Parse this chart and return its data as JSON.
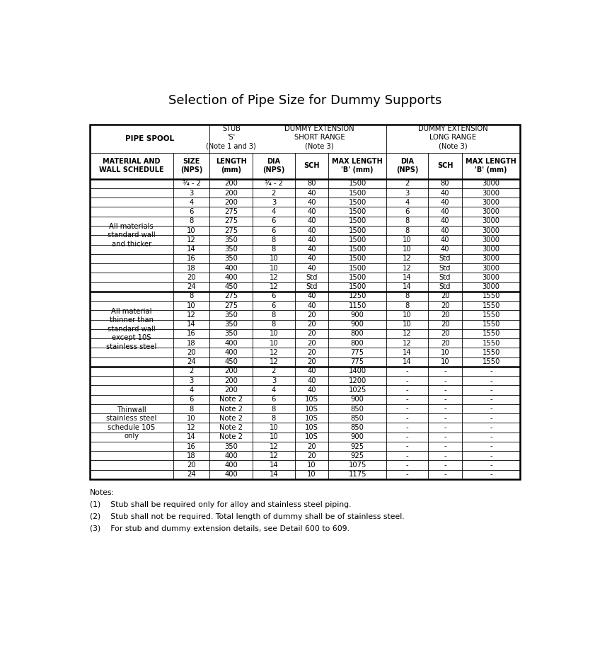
{
  "title": "Selection of Pipe Size for Dummy Supports",
  "sections": [
    {
      "label": "All materials\nstandard wall\nand thicker",
      "rows": [
        [
          "¾ - 2",
          "200",
          "¾ - 2",
          "80",
          "1500",
          "2",
          "80",
          "3000"
        ],
        [
          "3",
          "200",
          "2",
          "40",
          "1500",
          "3",
          "40",
          "3000"
        ],
        [
          "4",
          "200",
          "3",
          "40",
          "1500",
          "4",
          "40",
          "3000"
        ],
        [
          "6",
          "275",
          "4",
          "40",
          "1500",
          "6",
          "40",
          "3000"
        ],
        [
          "8",
          "275",
          "6",
          "40",
          "1500",
          "8",
          "40",
          "3000"
        ],
        [
          "10",
          "275",
          "6",
          "40",
          "1500",
          "8",
          "40",
          "3000"
        ],
        [
          "12",
          "350",
          "8",
          "40",
          "1500",
          "10",
          "40",
          "3000"
        ],
        [
          "14",
          "350",
          "8",
          "40",
          "1500",
          "10",
          "40",
          "3000"
        ],
        [
          "16",
          "350",
          "10",
          "40",
          "1500",
          "12",
          "Std",
          "3000"
        ],
        [
          "18",
          "400",
          "10",
          "40",
          "1500",
          "12",
          "Std",
          "3000"
        ],
        [
          "20",
          "400",
          "12",
          "Std",
          "1500",
          "14",
          "Std",
          "3000"
        ],
        [
          "24",
          "450",
          "12",
          "Std",
          "1500",
          "14",
          "Std",
          "3000"
        ]
      ]
    },
    {
      "label": "All material\nthinner than\nstandard wall\nexcept 10S\nstainless steel",
      "rows": [
        [
          "8",
          "275",
          "6",
          "40",
          "1250",
          "8",
          "20",
          "1550"
        ],
        [
          "10",
          "275",
          "6",
          "40",
          "1150",
          "8",
          "20",
          "1550"
        ],
        [
          "12",
          "350",
          "8",
          "20",
          "900",
          "10",
          "20",
          "1550"
        ],
        [
          "14",
          "350",
          "8",
          "20",
          "900",
          "10",
          "20",
          "1550"
        ],
        [
          "16",
          "350",
          "10",
          "20",
          "800",
          "12",
          "20",
          "1550"
        ],
        [
          "18",
          "400",
          "10",
          "20",
          "800",
          "12",
          "20",
          "1550"
        ],
        [
          "20",
          "400",
          "12",
          "20",
          "775",
          "14",
          "10",
          "1550"
        ],
        [
          "24",
          "450",
          "12",
          "20",
          "775",
          "14",
          "10",
          "1550"
        ]
      ]
    },
    {
      "label": "Thinwall\nstainless steel\nschedule 10S\nonly",
      "rows": [
        [
          "2",
          "200",
          "2",
          "40",
          "1400",
          "-",
          "-",
          "-"
        ],
        [
          "3",
          "200",
          "3",
          "40",
          "1200",
          "-",
          "-",
          "-"
        ],
        [
          "4",
          "200",
          "4",
          "40",
          "1025",
          "-",
          "-",
          "-"
        ],
        [
          "6",
          "Note 2",
          "6",
          "10S",
          "900",
          "-",
          "-",
          "-"
        ],
        [
          "8",
          "Note 2",
          "8",
          "10S",
          "850",
          "-",
          "-",
          "-"
        ],
        [
          "10",
          "Note 2",
          "8",
          "10S",
          "850",
          "-",
          "-",
          "-"
        ],
        [
          "12",
          "Note 2",
          "10",
          "10S",
          "850",
          "-",
          "-",
          "-"
        ],
        [
          "14",
          "Note 2",
          "10",
          "10S",
          "900",
          "-",
          "-",
          "-"
        ],
        [
          "16",
          "350",
          "12",
          "20",
          "925",
          "-",
          "-",
          "-"
        ],
        [
          "18",
          "400",
          "12",
          "20",
          "925",
          "-",
          "-",
          "-"
        ],
        [
          "20",
          "400",
          "14",
          "10",
          "1075",
          "-",
          "-",
          "-"
        ],
        [
          "24",
          "400",
          "14",
          "10",
          "1175",
          "-",
          "-",
          "-"
        ]
      ]
    }
  ],
  "notes_title": "Notes:",
  "notes": [
    "(1)    Stub shall be required only for alloy and stainless steel piping.",
    "(2)    Stub shall not be required. Total length of dummy shall be of stainless steel.",
    "(3)    For stub and dummy extension details, see Detail 600 to 609."
  ],
  "bg_color": "#ffffff",
  "text_color": "#000000",
  "border_color": "#000000",
  "thick_lw": 1.8,
  "thin_lw": 0.6
}
